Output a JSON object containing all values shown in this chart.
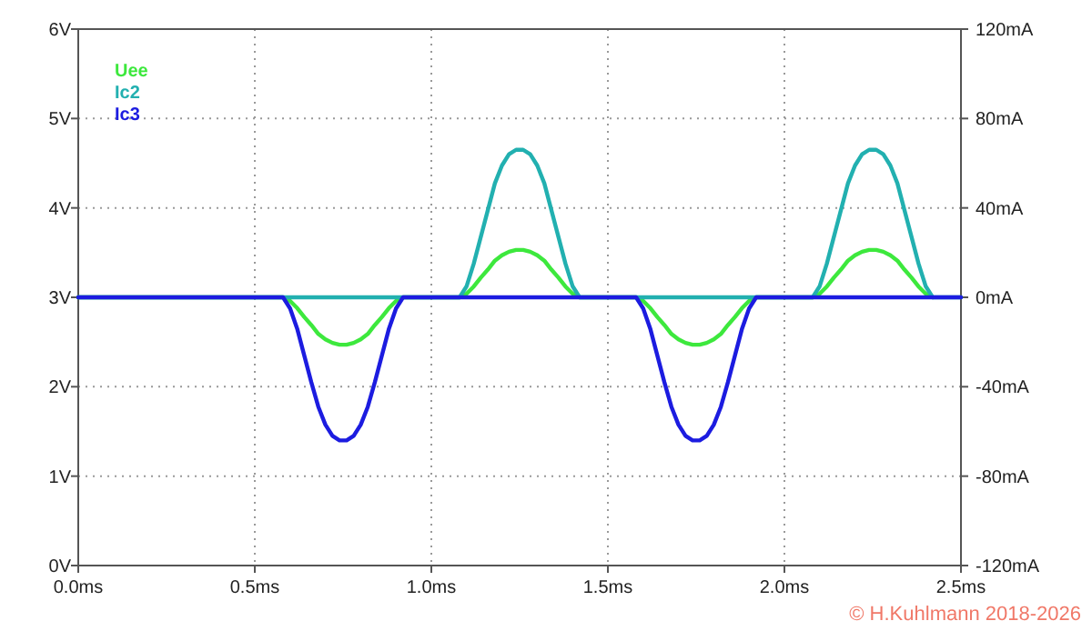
{
  "chart_data": {
    "type": "line",
    "x": [
      0,
      0.58,
      0.6,
      0.62,
      0.64,
      0.66,
      0.68,
      0.7,
      0.72,
      0.74,
      0.76,
      0.78,
      0.8,
      0.82,
      0.84,
      0.86,
      0.88,
      0.9,
      0.92,
      1.08,
      1.1,
      1.12,
      1.14,
      1.16,
      1.18,
      1.2,
      1.22,
      1.24,
      1.26,
      1.28,
      1.3,
      1.32,
      1.34,
      1.36,
      1.38,
      1.4,
      1.42,
      1.58,
      1.6,
      1.62,
      1.64,
      1.66,
      1.68,
      1.7,
      1.72,
      1.74,
      1.76,
      1.78,
      1.8,
      1.82,
      1.84,
      1.86,
      1.88,
      1.9,
      1.92,
      2.08,
      2.1,
      2.12,
      2.14,
      2.16,
      2.18,
      2.2,
      2.22,
      2.24,
      2.26,
      2.28,
      2.3,
      2.32,
      2.34,
      2.36,
      2.38,
      2.4,
      2.42,
      2.5
    ],
    "series": [
      {
        "name": "Uee",
        "color": "#3de83d",
        "values": [
          3,
          3,
          2.96,
          2.88,
          2.78,
          2.69,
          2.59,
          2.53,
          2.49,
          2.47,
          2.47,
          2.49,
          2.53,
          2.59,
          2.69,
          2.78,
          2.88,
          2.96,
          3,
          3,
          3.04,
          3.12,
          3.22,
          3.31,
          3.41,
          3.47,
          3.51,
          3.53,
          3.53,
          3.51,
          3.47,
          3.41,
          3.31,
          3.22,
          3.12,
          3.04,
          3,
          3,
          2.96,
          2.88,
          2.78,
          2.69,
          2.59,
          2.53,
          2.49,
          2.47,
          2.47,
          2.49,
          2.53,
          2.59,
          2.69,
          2.78,
          2.88,
          2.96,
          3,
          3,
          3.04,
          3.12,
          3.22,
          3.31,
          3.41,
          3.47,
          3.51,
          3.53,
          3.53,
          3.51,
          3.47,
          3.41,
          3.31,
          3.22,
          3.12,
          3.04,
          3,
          null
        ]
      },
      {
        "name": "Ic2",
        "color": "#22b0b0",
        "axis": "y2",
        "values": [
          0,
          0,
          0,
          0,
          0,
          0,
          0,
          0,
          0,
          0,
          0,
          0,
          0,
          0,
          0,
          0,
          0,
          0,
          0,
          0,
          5,
          15,
          27,
          39,
          51,
          59,
          64,
          66,
          66,
          64,
          59,
          51,
          39,
          27,
          15,
          5,
          0,
          0,
          0,
          0,
          0,
          0,
          0,
          0,
          0,
          0,
          0,
          0,
          0,
          0,
          0,
          0,
          0,
          0,
          0,
          0,
          5,
          15,
          27,
          39,
          51,
          59,
          64,
          66,
          66,
          64,
          59,
          51,
          39,
          27,
          15,
          5,
          0,
          0
        ]
      },
      {
        "name": "Ic3",
        "color": "#1c1ce0",
        "axis": "y2",
        "values": [
          0,
          0,
          -5,
          -14,
          -26,
          -38,
          -49,
          -57,
          -62,
          -64,
          -64,
          -62,
          -57,
          -49,
          -38,
          -26,
          -14,
          -5,
          0,
          0,
          0,
          0,
          0,
          0,
          0,
          0,
          0,
          0,
          0,
          0,
          0,
          0,
          0,
          0,
          0,
          0,
          0,
          0,
          -5,
          -14,
          -26,
          -38,
          -49,
          -57,
          -62,
          -64,
          -64,
          -62,
          -57,
          -49,
          -38,
          -26,
          -14,
          -5,
          0,
          0,
          0,
          0,
          0,
          0,
          0,
          0,
          0,
          0,
          0,
          0,
          0,
          0,
          0,
          0,
          0,
          0,
          0,
          0
        ]
      }
    ],
    "xlim": [
      0,
      2.5
    ],
    "xticks": [
      {
        "value": 0,
        "label": "0.0ms"
      },
      {
        "value": 0.5,
        "label": "0.5ms"
      },
      {
        "value": 1,
        "label": "1.0ms"
      },
      {
        "value": 1.5,
        "label": "1.5ms"
      },
      {
        "value": 2,
        "label": "2.0ms"
      },
      {
        "value": 2.5,
        "label": "2.5ms"
      }
    ],
    "ylim": [
      0,
      6
    ],
    "yticks": [
      {
        "value": 0,
        "label": "0V"
      },
      {
        "value": 1,
        "label": "1V"
      },
      {
        "value": 2,
        "label": "2V"
      },
      {
        "value": 3,
        "label": "3V"
      },
      {
        "value": 4,
        "label": "4V"
      },
      {
        "value": 5,
        "label": "5V"
      },
      {
        "value": 6,
        "label": "6V"
      }
    ],
    "y2lim": [
      -120,
      120
    ],
    "y2ticks": [
      {
        "value": -120,
        "label": "-120mA"
      },
      {
        "value": -80,
        "label": "-80mA"
      },
      {
        "value": -40,
        "label": "-40mA"
      },
      {
        "value": 0,
        "label": "0mA"
      },
      {
        "value": 40,
        "label": "40mA"
      },
      {
        "value": 80,
        "label": "80mA"
      },
      {
        "value": 120,
        "label": "120mA"
      }
    ],
    "grid": true,
    "legend": "top left",
    "marker": "none",
    "line_style": "solid",
    "annotations": [
      "© H.Kuhlmann 2018-2026"
    ]
  }
}
